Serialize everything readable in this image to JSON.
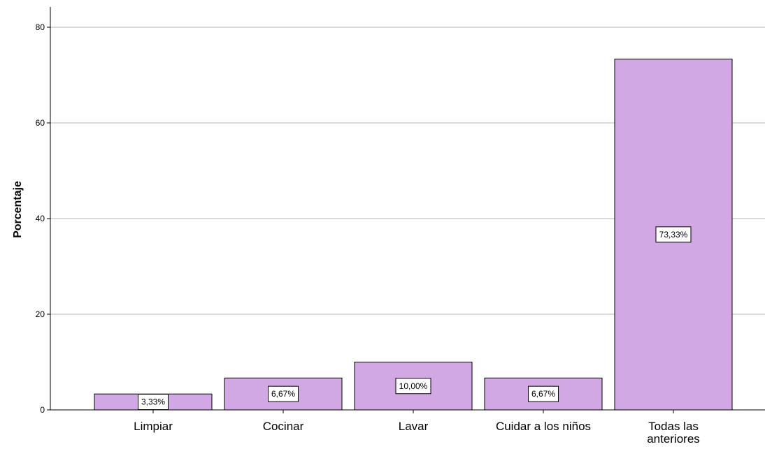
{
  "chart_data": {
    "type": "bar",
    "title": "",
    "xlabel": "",
    "ylabel": "Porcentaje",
    "ylim": [
      0,
      85
    ],
    "yticks": [
      0,
      20,
      40,
      60,
      80
    ],
    "grid": true,
    "categories": [
      [
        "Limpiar"
      ],
      [
        "Cocinar"
      ],
      [
        "Lavar"
      ],
      [
        "Cuidar a los niños"
      ],
      [
        "Todas las",
        "anteriores"
      ]
    ],
    "values": [
      3.33,
      6.67,
      10.0,
      6.67,
      73.33
    ],
    "data_labels": [
      "3,33%",
      "6,67%",
      "10,00%",
      "6,67%",
      "73,33%"
    ],
    "colors": {
      "bar_fill": "#d1a8e3",
      "bar_stroke": "#000000",
      "grid": "#b3b3b3",
      "axis": "#000000",
      "label_box": "#ffffff"
    }
  }
}
